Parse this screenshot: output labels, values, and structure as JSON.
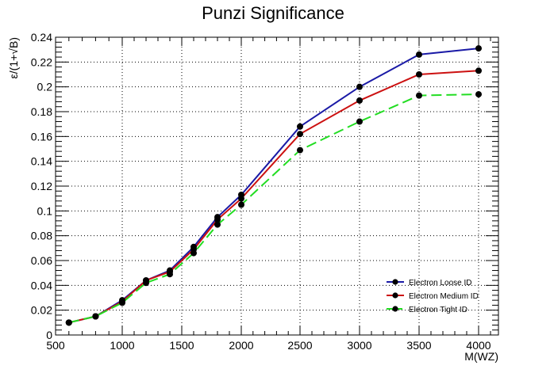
{
  "chart_data": {
    "type": "line",
    "title": "Punzi Significance",
    "xlabel": "M(WZ)",
    "ylabel": "ε/(1+√B)",
    "ylim": [
      0,
      0.24
    ],
    "x": [
      600,
      800,
      1000,
      1200,
      1400,
      1600,
      1800,
      2000,
      2500,
      3000,
      3500,
      4000
    ],
    "x_ticks": [
      "500",
      "1000",
      "1500",
      "2000",
      "2500",
      "3000",
      "3500",
      "4000"
    ],
    "y_ticks": [
      "0",
      "0.02",
      "0.04",
      "0.06",
      "0.08",
      "0.1",
      "0.12",
      "0.14",
      "0.16",
      "0.18",
      "0.2",
      "0.22",
      "0.24"
    ],
    "grid": true,
    "legend_position": "bottom-right",
    "series": [
      {
        "name": "Electron Loose ID",
        "color": "#1a1aa6",
        "dash": "solid",
        "values": [
          0.01,
          0.015,
          0.028,
          0.044,
          0.052,
          0.071,
          0.095,
          0.113,
          0.168,
          0.2,
          0.226,
          0.231
        ]
      },
      {
        "name": "Electron Medium ID",
        "color": "#cc1111",
        "dash": "solid",
        "values": [
          0.01,
          0.015,
          0.027,
          0.044,
          0.051,
          0.069,
          0.093,
          0.11,
          0.162,
          0.189,
          0.21,
          0.213
        ]
      },
      {
        "name": "Electron Tight ID",
        "color": "#22dd22",
        "dash": "dashed",
        "values": [
          0.01,
          0.015,
          0.026,
          0.042,
          0.049,
          0.066,
          0.089,
          0.105,
          0.149,
          0.172,
          0.193,
          0.194
        ]
      }
    ]
  }
}
